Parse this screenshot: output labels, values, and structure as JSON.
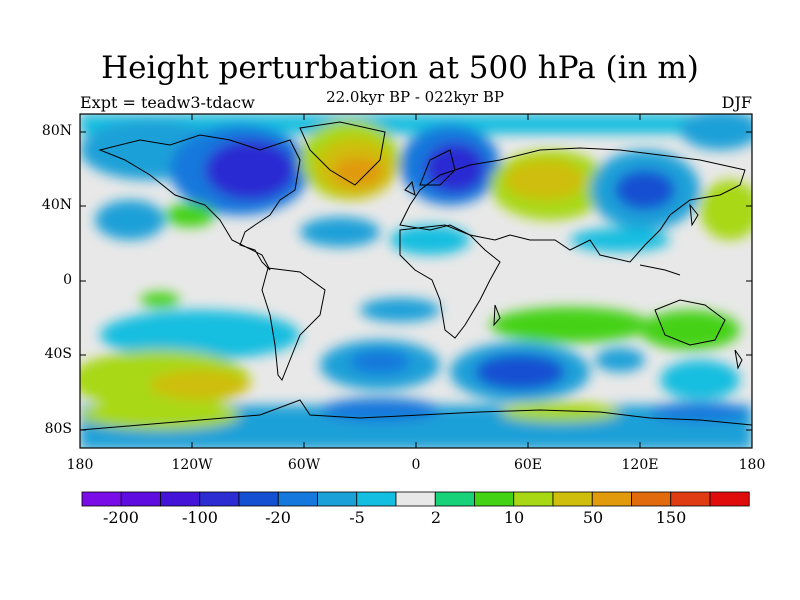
{
  "title": "Height perturbation at 500 hPa (in m)",
  "subtitle": "22.0kyr BP - 022kyr BP",
  "experiment": "Expt = teadw3-tdacw",
  "season": "DJF",
  "y_ticks": [
    "80N",
    "40N",
    "0",
    "40S",
    "80S"
  ],
  "x_ticks": [
    "180",
    "120W",
    "60W",
    "0",
    "60E",
    "120E",
    "180"
  ],
  "colorbar": {
    "colors": [
      "#7a0ce8",
      "#5e0ce0",
      "#4414d8",
      "#2c2cd2",
      "#1450d2",
      "#1478dc",
      "#1ca0d8",
      "#14bee0",
      "#e8e8e8",
      "#18d27a",
      "#44d214",
      "#a8d814",
      "#cfbe0c",
      "#e09a0c",
      "#e06a0c",
      "#e03c14",
      "#e00c0c"
    ],
    "labels": [
      "-200",
      "-100",
      "-20",
      "-5",
      "2",
      "10",
      "50",
      "150"
    ]
  }
}
